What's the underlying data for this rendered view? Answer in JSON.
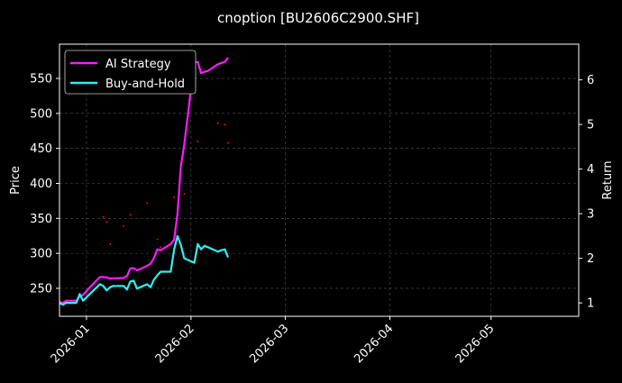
{
  "chart_data": {
    "type": "line",
    "title": "cnoption [BU2606C2900.SHF]",
    "xlabel": "",
    "ylabel_left": "Price",
    "ylabel_right": "Return",
    "x_range": [
      "2025-12-24",
      "2026-05-27"
    ],
    "x_ticks": [
      "2026-01",
      "2026-02",
      "2026-03",
      "2026-04",
      "2026-05"
    ],
    "ylim_left": [
      210,
      599
    ],
    "yticks_left": [
      250,
      300,
      350,
      400,
      450,
      500,
      550
    ],
    "ylim_right": [
      0.7,
      6.8
    ],
    "yticks_right": [
      1,
      2,
      3,
      4,
      5,
      6
    ],
    "grid": true,
    "legend": {
      "position": "top-left",
      "entries": [
        "AI Strategy",
        "Buy-and-Hold"
      ]
    },
    "colors": {
      "ai_strategy": "#ff1aff",
      "buy_and_hold": "#33eeee",
      "trade_markers": "#ff0000",
      "background": "#000000",
      "grid": "#555555"
    },
    "series": [
      {
        "name": "AI Strategy",
        "axis": "right",
        "x": [
          "2025-12-24",
          "2025-12-25",
          "2025-12-26",
          "2025-12-29",
          "2025-12-30",
          "2025-12-31",
          "2026-01-02",
          "2026-01-05",
          "2026-01-06",
          "2026-01-07",
          "2026-01-08",
          "2026-01-09",
          "2026-01-12",
          "2026-01-13",
          "2026-01-14",
          "2026-01-15",
          "2026-01-16",
          "2026-01-19",
          "2026-01-20",
          "2026-01-21",
          "2026-01-22",
          "2026-01-23",
          "2026-01-26",
          "2026-01-27",
          "2026-01-28",
          "2026-01-29",
          "2026-01-30",
          "2026-02-02",
          "2026-02-03",
          "2026-02-04",
          "2026-02-05",
          "2026-02-06",
          "2026-02-09",
          "2026-02-10",
          "2026-02-11",
          "2026-02-12"
        ],
        "values": [
          1.02,
          1.0,
          1.05,
          1.05,
          1.15,
          1.18,
          1.35,
          1.58,
          1.58,
          1.57,
          1.55,
          1.55,
          1.56,
          1.6,
          1.77,
          1.78,
          1.73,
          1.83,
          1.88,
          2.0,
          2.2,
          2.18,
          2.32,
          2.42,
          3.0,
          4.05,
          4.55,
          6.4,
          6.4,
          6.15,
          6.18,
          6.2,
          6.35,
          6.38,
          6.4,
          6.5
        ]
      },
      {
        "name": "Buy-and-Hold",
        "axis": "right",
        "x": [
          "2025-12-24",
          "2025-12-25",
          "2025-12-26",
          "2025-12-29",
          "2025-12-30",
          "2025-12-31",
          "2026-01-02",
          "2026-01-05",
          "2026-01-06",
          "2026-01-07",
          "2026-01-08",
          "2026-01-09",
          "2026-01-12",
          "2026-01-13",
          "2026-01-14",
          "2026-01-15",
          "2026-01-16",
          "2026-01-19",
          "2026-01-20",
          "2026-01-21",
          "2026-01-22",
          "2026-01-23",
          "2026-01-26",
          "2026-01-27",
          "2026-01-28",
          "2026-01-29",
          "2026-01-30",
          "2026-02-02",
          "2026-02-03",
          "2026-02-04",
          "2026-02-05",
          "2026-02-06",
          "2026-02-09",
          "2026-02-10",
          "2026-02-11",
          "2026-02-12"
        ],
        "values": [
          1.0,
          0.96,
          1.0,
          1.0,
          1.2,
          1.05,
          1.2,
          1.42,
          1.38,
          1.28,
          1.35,
          1.38,
          1.38,
          1.3,
          1.48,
          1.5,
          1.32,
          1.42,
          1.35,
          1.52,
          1.62,
          1.7,
          1.7,
          2.2,
          2.5,
          2.3,
          2.0,
          1.9,
          2.32,
          2.2,
          2.28,
          2.25,
          2.15,
          2.18,
          2.2,
          2.02
        ]
      }
    ],
    "trade_markers": {
      "axis": "left",
      "x": [
        "2026-01-06",
        "2026-01-07",
        "2026-01-08",
        "2026-01-12",
        "2026-01-14",
        "2026-01-19",
        "2026-01-22",
        "2026-01-23",
        "2026-01-27",
        "2026-01-30",
        "2026-02-03",
        "2026-02-09",
        "2026-02-11",
        "2026-02-12"
      ],
      "values": [
        352,
        345,
        313,
        339,
        355,
        372,
        320,
        309,
        380,
        385,
        460,
        486,
        484,
        458
      ]
    }
  }
}
